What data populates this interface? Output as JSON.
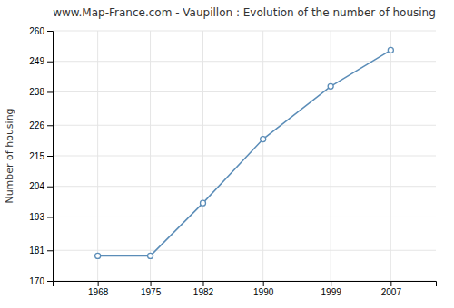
{
  "chart_data": {
    "type": "line",
    "title": "www.Map-France.com - Vaupillon : Evolution of the number of housing",
    "ylabel": "Number of housing",
    "x": [
      1968,
      1975,
      1982,
      1990,
      1999,
      2007
    ],
    "values": [
      179,
      179,
      198,
      221,
      240,
      253
    ],
    "color": "#5b8db8",
    "marker": "circle",
    "xlim": [
      1962,
      2013
    ],
    "xticks": [
      1968,
      1975,
      1982,
      1990,
      1999,
      2007
    ],
    "ylim": [
      170,
      260
    ],
    "yticks": [
      170,
      181,
      193,
      204,
      215,
      226,
      238,
      249,
      260
    ],
    "grid": true
  }
}
